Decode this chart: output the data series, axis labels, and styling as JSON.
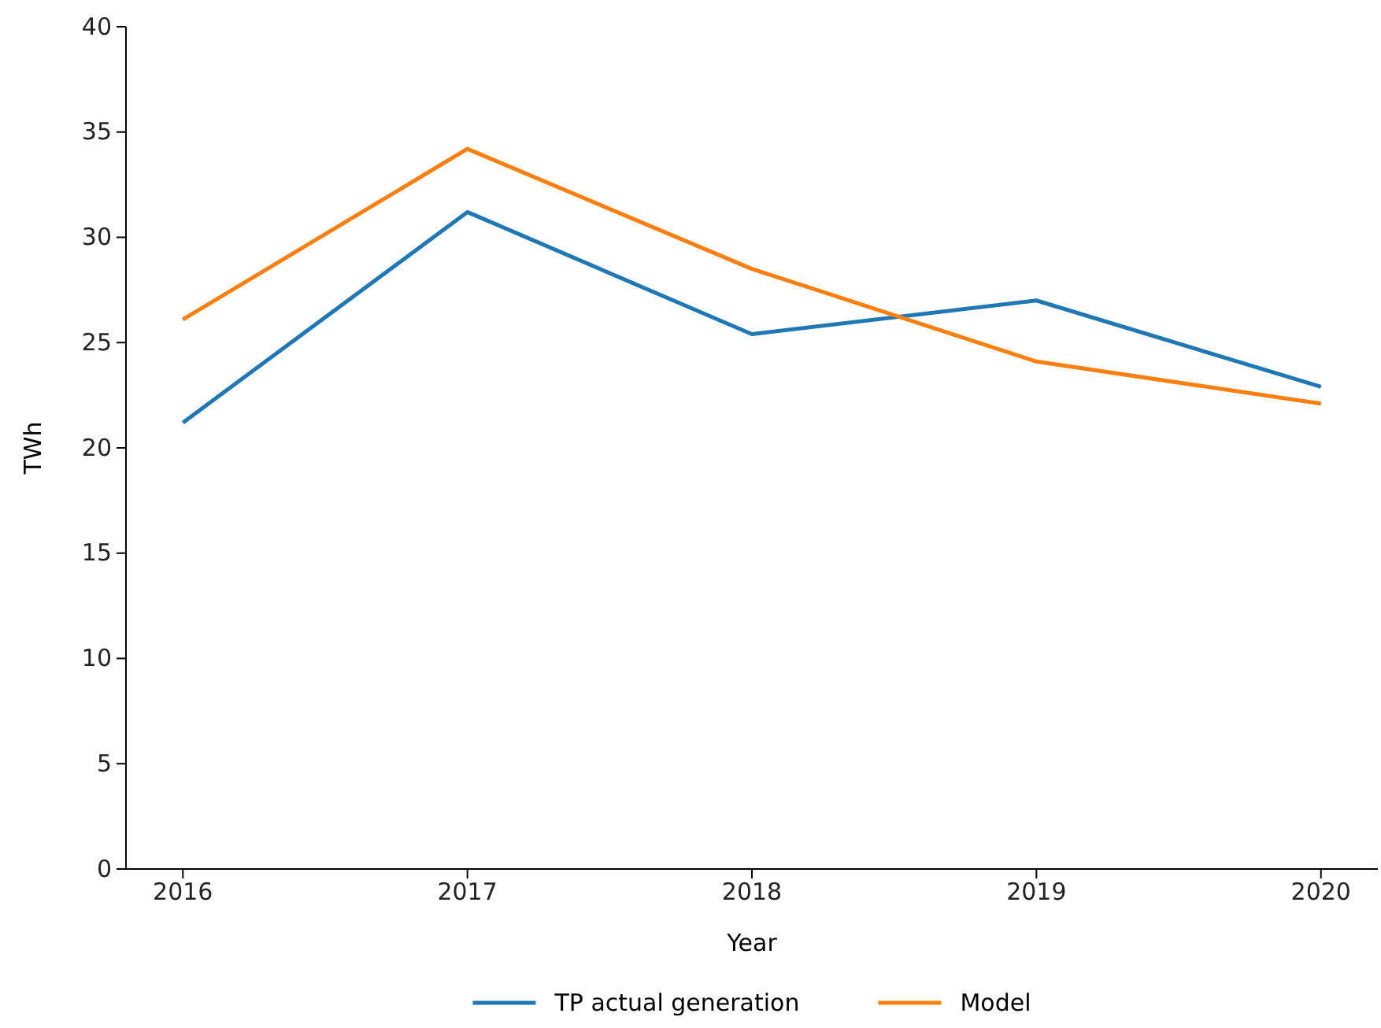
{
  "chart_data": {
    "type": "line",
    "xlabel": "Year",
    "ylabel": "TWh",
    "x": [
      2016,
      2017,
      2018,
      2019,
      2020
    ],
    "series": [
      {
        "name": "TP actual generation",
        "color": "#1f77b4",
        "values": [
          21.2,
          31.2,
          25.4,
          27.0,
          22.9
        ]
      },
      {
        "name": "Model",
        "color": "#ff7f0e",
        "values": [
          26.1,
          34.2,
          28.5,
          24.1,
          22.1
        ]
      }
    ],
    "xlim": [
      2015.8,
      2020.2
    ],
    "xticks": [
      2016,
      2017,
      2018,
      2019,
      2020
    ],
    "ylim": [
      0,
      40
    ],
    "yticks": [
      0,
      5,
      10,
      15,
      20,
      25,
      30,
      35,
      40
    ],
    "grid": false,
    "legend": "bottom",
    "marker": "none",
    "line_style": "solid"
  }
}
